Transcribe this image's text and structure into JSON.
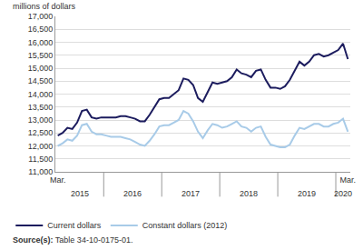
{
  "chart_data": {
    "type": "line",
    "y_label": "millions of dollars",
    "categories": [
      "Mar.",
      null,
      null,
      null,
      null,
      null,
      null,
      null,
      null,
      null,
      null,
      null,
      null,
      null,
      null,
      null,
      null,
      null,
      null,
      null,
      null,
      null,
      null,
      null,
      null,
      null,
      null,
      null,
      null,
      null,
      null,
      null,
      null,
      null,
      null,
      null,
      null,
      null,
      null,
      null,
      null,
      null,
      null,
      null,
      null,
      null,
      null,
      null,
      null,
      null,
      null,
      null,
      null,
      null,
      null,
      null,
      null,
      null,
      null,
      null,
      "Mar."
    ],
    "x_groups": [
      {
        "label": "2015",
        "start": 0,
        "end": 9
      },
      {
        "label": "2016",
        "start": 10,
        "end": 21
      },
      {
        "label": "2017",
        "start": 22,
        "end": 33
      },
      {
        "label": "2018",
        "start": 34,
        "end": 45
      },
      {
        "label": "2019",
        "start": 46,
        "end": 57
      },
      {
        "label": "2020",
        "start": 58,
        "end": 60
      }
    ],
    "series": [
      {
        "name": "Current dollars",
        "color": "#1c1c5e",
        "values": [
          12400,
          12500,
          12700,
          12650,
          12900,
          13350,
          13400,
          13100,
          13050,
          13100,
          13100,
          13100,
          13100,
          13150,
          13150,
          13100,
          13050,
          12950,
          12950,
          13200,
          13500,
          13800,
          13850,
          13850,
          14000,
          14150,
          14600,
          14550,
          14350,
          13850,
          13700,
          14050,
          14450,
          14400,
          14450,
          14500,
          14650,
          14950,
          14800,
          14750,
          14650,
          14900,
          14950,
          14550,
          14250,
          14250,
          14200,
          14300,
          14550,
          14900,
          15250,
          15100,
          15250,
          15500,
          15550,
          15450,
          15500,
          15600,
          15700,
          15950,
          15350
        ]
      },
      {
        "name": "Constant dollars (2012)",
        "color": "#a8cbe8",
        "values": [
          12000,
          12100,
          12250,
          12200,
          12400,
          12800,
          12850,
          12550,
          12450,
          12450,
          12400,
          12350,
          12350,
          12350,
          12300,
          12250,
          12150,
          12050,
          12000,
          12200,
          12450,
          12750,
          12800,
          12800,
          12900,
          13000,
          13350,
          13250,
          12950,
          12550,
          12300,
          12600,
          12850,
          12800,
          12700,
          12750,
          12850,
          12950,
          12750,
          12700,
          12550,
          12700,
          12750,
          12350,
          12050,
          12000,
          11950,
          11950,
          12050,
          12400,
          12700,
          12650,
          12750,
          12850,
          12850,
          12750,
          12750,
          12850,
          12900,
          13050,
          12550
        ]
      }
    ],
    "ylim": [
      11000,
      17000
    ],
    "yticks": [
      {
        "value": 11000,
        "label": "11,000"
      },
      {
        "value": 11500,
        "label": "11,500"
      },
      {
        "value": 12000,
        "label": "12,000"
      },
      {
        "value": 12500,
        "label": "12,500"
      },
      {
        "value": 13000,
        "label": "13,000"
      },
      {
        "value": 13500,
        "label": "13,500"
      },
      {
        "value": 14000,
        "label": "14,000"
      },
      {
        "value": 14500,
        "label": "14,500"
      },
      {
        "value": 15000,
        "label": "15,000"
      },
      {
        "value": 15500,
        "label": "15,500"
      },
      {
        "value": 16000,
        "label": "16,000"
      },
      {
        "value": 16500,
        "label": "16,500"
      },
      {
        "value": 17000,
        "label": "17,000"
      }
    ],
    "grid": true,
    "legend": "bottom",
    "source_label": "Source(s):",
    "source_text": "Table 34-10-0175-01."
  }
}
